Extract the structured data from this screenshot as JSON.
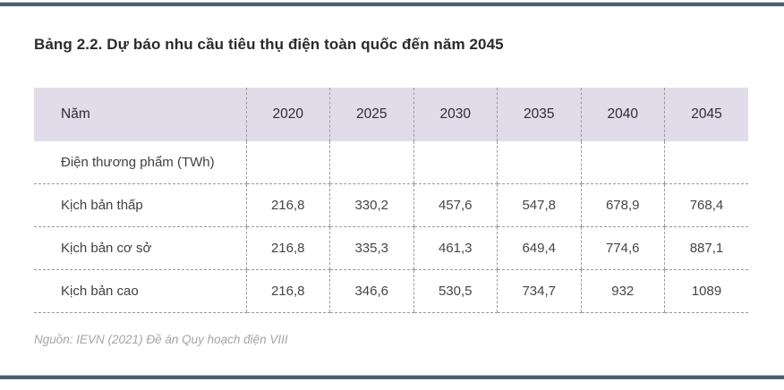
{
  "page": {
    "title": "Bảng 2.2. Dự báo nhu cầu tiêu thụ điện toàn quốc đến năm 2045",
    "source": "Nguồn: IEVN (2021) Đề án Quy hoạch điện VIII"
  },
  "colors": {
    "header_bg": "#e0dce9",
    "rule_bar": "#4a5e71",
    "dash_line": "#9a9a9a",
    "title_text": "#2b2b2e",
    "source_text": "#a6a4a6"
  },
  "chart_data": {
    "type": "table",
    "title": "Bảng 2.2. Dự báo nhu cầu tiêu thụ điện toàn quốc đến năm 2045",
    "columns": [
      "Năm",
      "2020",
      "2025",
      "2030",
      "2035",
      "2040",
      "2045"
    ],
    "rows": [
      {
        "label": "Điện thương phẩm (TWh)",
        "values": [
          "",
          "",
          "",
          "",
          "",
          ""
        ]
      },
      {
        "label": "Kịch bản thấp",
        "values": [
          "216,8",
          "330,2",
          "457,6",
          "547,8",
          "678,9",
          "768,4"
        ]
      },
      {
        "label": "Kịch bản cơ sở",
        "values": [
          "216,8",
          "335,3",
          "461,3",
          "649,4",
          "774,6",
          "887,1"
        ]
      },
      {
        "label": "Kịch bản cao",
        "values": [
          "216,8",
          "346,6",
          "530,5",
          "734,7",
          "932",
          "1089"
        ]
      }
    ]
  }
}
